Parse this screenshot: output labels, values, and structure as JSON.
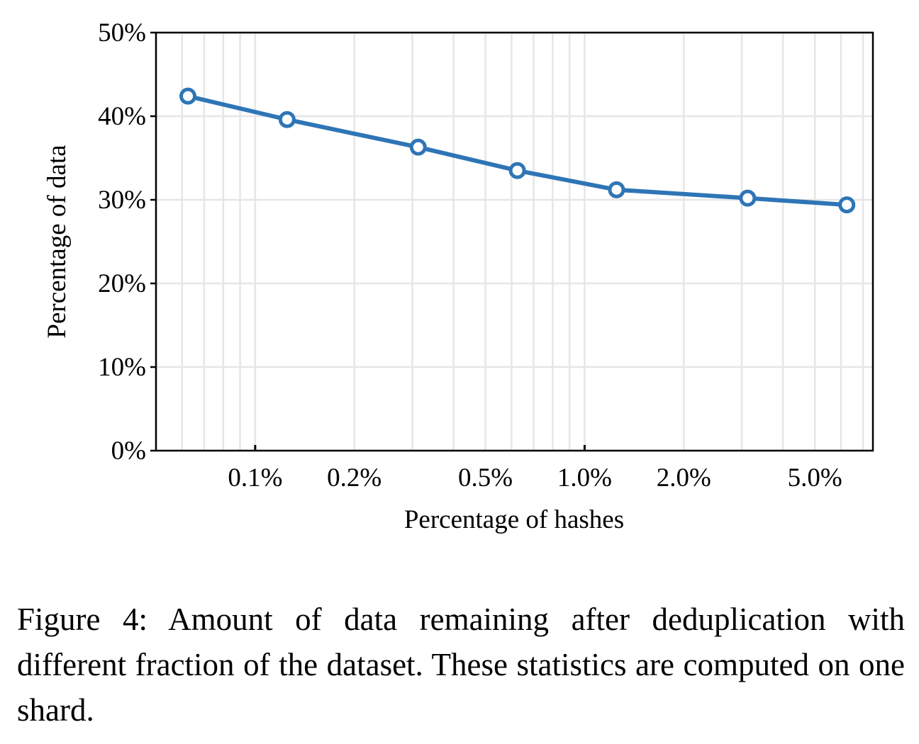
{
  "chart_data": {
    "type": "line",
    "x_scale": "log",
    "xlabel": "Percentage of hashes",
    "ylabel": "Percentage of data",
    "x_ticks": [
      {
        "value": 0.1,
        "label": "0.1%"
      },
      {
        "value": 0.2,
        "label": "0.2%"
      },
      {
        "value": 0.5,
        "label": "0.5%"
      },
      {
        "value": 1.0,
        "label": "1.0%"
      },
      {
        "value": 2.0,
        "label": "2.0%"
      },
      {
        "value": 5.0,
        "label": "5.0%"
      }
    ],
    "y_ticks": [
      {
        "value": 0,
        "label": "0%"
      },
      {
        "value": 10,
        "label": "10%"
      },
      {
        "value": 20,
        "label": "20%"
      },
      {
        "value": 30,
        "label": "30%"
      },
      {
        "value": 40,
        "label": "40%"
      },
      {
        "value": 50,
        "label": "50%"
      }
    ],
    "xlim": [
      0.05,
      7.5
    ],
    "ylim": [
      0,
      50
    ],
    "grid": true,
    "series": [
      {
        "x": [
          0.0625,
          0.125,
          0.3125,
          0.625,
          1.25,
          3.125,
          6.25
        ],
        "y": [
          42.4,
          39.6,
          36.3,
          33.5,
          31.2,
          30.2,
          29.4
        ],
        "color": "#2e75b6",
        "marker": "open-circle"
      }
    ]
  },
  "caption": "Figure 4:  Amount of data remaining after deduplication with different fraction of the dataset.  These statistics are computed on one shard."
}
